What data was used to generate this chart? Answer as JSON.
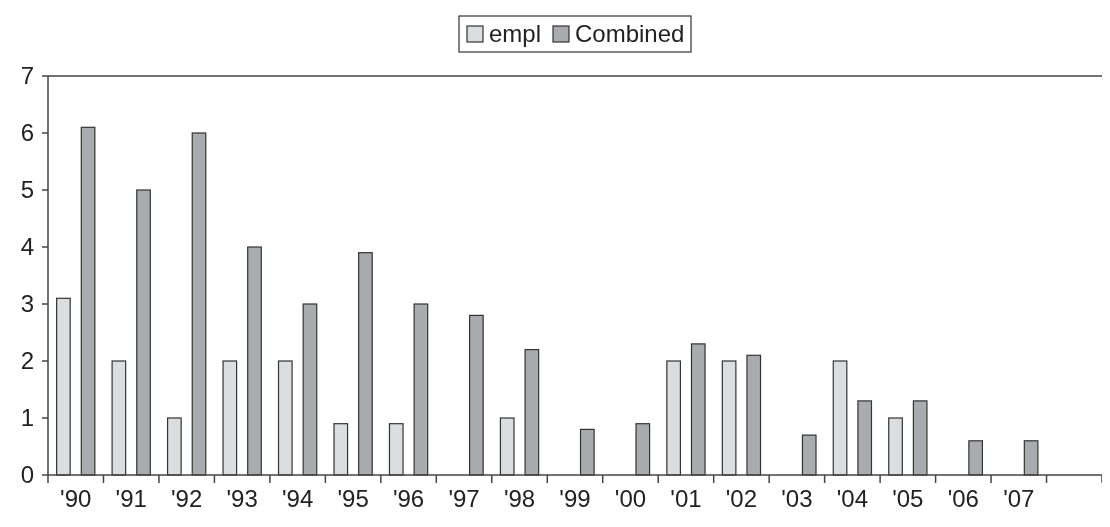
{
  "chart_data": {
    "type": "bar",
    "categories": [
      "'90",
      "'91",
      "'92",
      "'93",
      "'94",
      "'95",
      "'96",
      "'97",
      "'98",
      "'99",
      "'00",
      "'01",
      "'02",
      "'03",
      "'04",
      "'05",
      "'06",
      "'07",
      null
    ],
    "series": [
      {
        "name": "empl",
        "color": "#dcdddf",
        "values": [
          3.1,
          2,
          1,
          2,
          2,
          0.9,
          0.9,
          null,
          1,
          null,
          null,
          2,
          2,
          null,
          2,
          1,
          null,
          null,
          null
        ]
      },
      {
        "name": "Combined",
        "color": "#aaabae",
        "values": [
          6.1,
          5,
          6,
          4,
          3,
          3.9,
          3,
          2.8,
          2.2,
          0.8,
          0.9,
          2.3,
          2.1,
          0.7,
          1.3,
          1.3,
          0.6,
          0.6,
          null
        ]
      }
    ],
    "ylim": [
      0,
      7
    ],
    "yticks": [
      0,
      1,
      2,
      3,
      4,
      5,
      6,
      7
    ],
    "grid": false,
    "legend": "top"
  }
}
